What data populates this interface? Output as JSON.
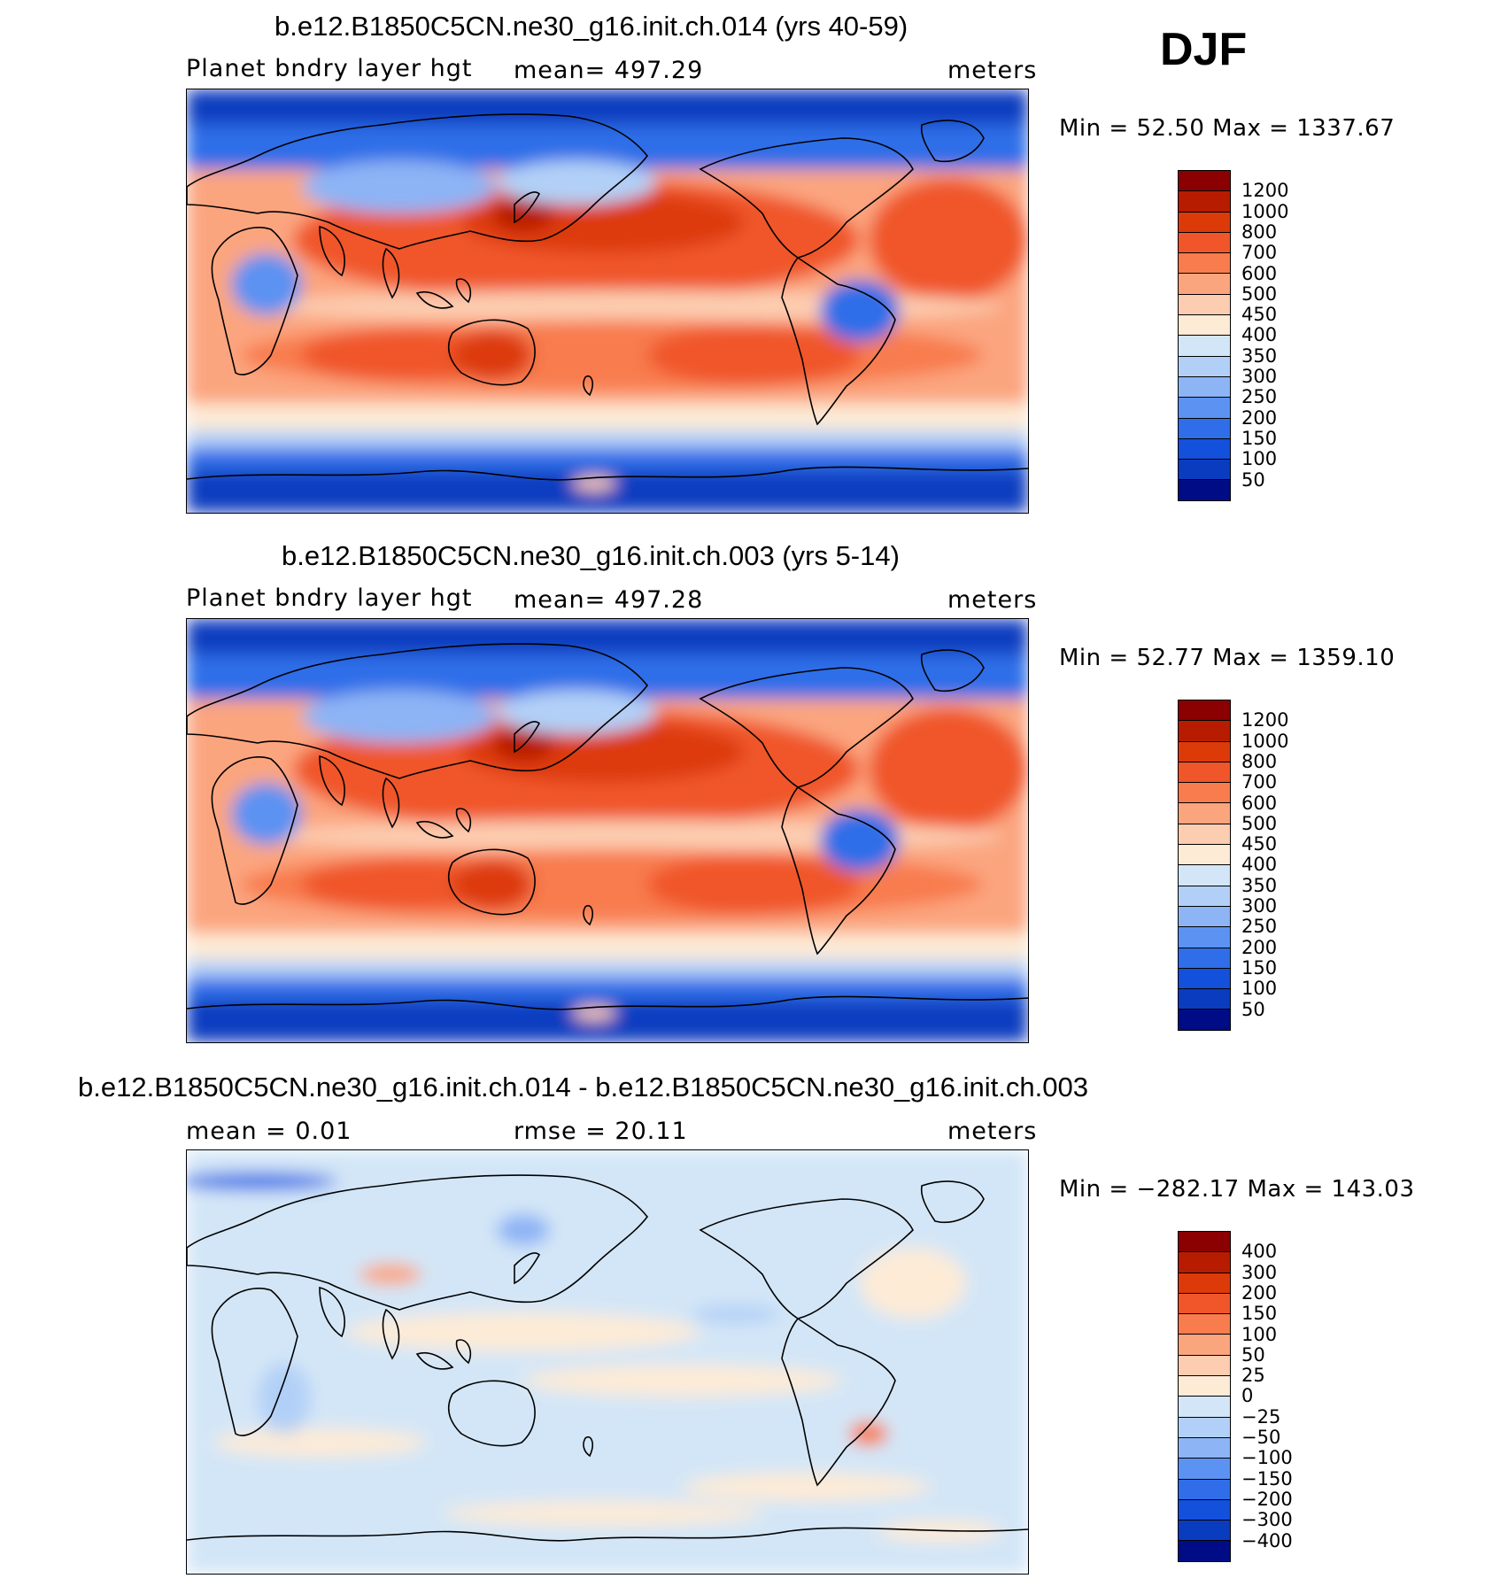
{
  "season": "DJF",
  "panels": [
    {
      "title": "b.e12.B1850C5CN.ne30_g16.init.ch.014 (yrs 40-59)",
      "left": "Planet bndry layer hgt",
      "center": "mean=  497.29",
      "right": "meters",
      "minmax": "Min =   52.50 Max = 1337.67",
      "kind": "field",
      "colorbar": {
        "colors": [
          "#8b0000",
          "#b81c00",
          "#dd3a0a",
          "#f0562a",
          "#f87c4e",
          "#fba57f",
          "#fdcdb1",
          "#fdebd6",
          "#d3e6f7",
          "#b2d0f7",
          "#8db4f5",
          "#5c92f2",
          "#2f6ee8",
          "#1350db",
          "#0a3cc0",
          "#000c86"
        ],
        "labels": [
          "1200",
          "1000",
          "800",
          "700",
          "600",
          "500",
          "450",
          "400",
          "350",
          "300",
          "250",
          "200",
          "150",
          "100",
          "50"
        ]
      }
    },
    {
      "title": "b.e12.B1850C5CN.ne30_g16.init.ch.003 (yrs 5-14)",
      "left": "Planet bndry layer hgt",
      "center": "mean=  497.28",
      "right": "meters",
      "minmax": "Min =   52.77 Max = 1359.10",
      "kind": "field",
      "colorbar": {
        "colors": [
          "#8b0000",
          "#b81c00",
          "#dd3a0a",
          "#f0562a",
          "#f87c4e",
          "#fba57f",
          "#fdcdb1",
          "#fdebd6",
          "#d3e6f7",
          "#b2d0f7",
          "#8db4f5",
          "#5c92f2",
          "#2f6ee8",
          "#1350db",
          "#0a3cc0",
          "#000c86"
        ],
        "labels": [
          "1200",
          "1000",
          "800",
          "700",
          "600",
          "500",
          "450",
          "400",
          "350",
          "300",
          "250",
          "200",
          "150",
          "100",
          "50"
        ]
      }
    },
    {
      "title": "b.e12.B1850C5CN.ne30_g16.init.ch.014 - b.e12.B1850C5CN.ne30_g16.init.ch.003",
      "left": "mean =    0.01",
      "center": "rmse =   20.11",
      "right": "meters",
      "minmax": "Min = −282.17 Max =  143.03",
      "kind": "diff",
      "colorbar": {
        "colors": [
          "#8b0000",
          "#b81c00",
          "#dd3a0a",
          "#f0562a",
          "#f87c4e",
          "#fba57f",
          "#fdcdb1",
          "#fdebd6",
          "#d3e6f7",
          "#b2d0f7",
          "#8db4f5",
          "#5c92f2",
          "#2f6ee8",
          "#1350db",
          "#0a3cc0",
          "#000c86"
        ],
        "labels": [
          "400",
          "300",
          "200",
          "150",
          "100",
          "50",
          "25",
          "0",
          "−25",
          "−50",
          "−100",
          "−150",
          "−200",
          "−300",
          "−400"
        ]
      }
    }
  ]
}
